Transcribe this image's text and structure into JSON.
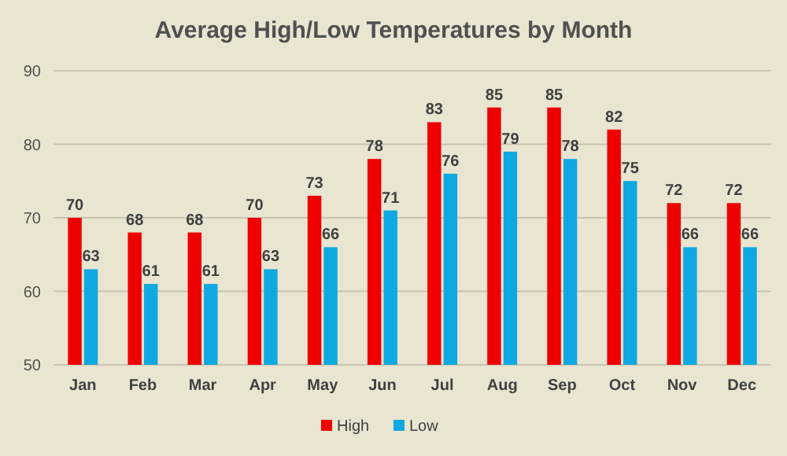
{
  "chart_data": {
    "type": "bar",
    "title": "Average High/Low Temperatures by Month",
    "categories": [
      "Jan",
      "Feb",
      "Mar",
      "Apr",
      "May",
      "Jun",
      "Jul",
      "Aug",
      "Sep",
      "Oct",
      "Nov",
      "Dec"
    ],
    "series": [
      {
        "name": "High",
        "color": "#ee0000",
        "values": [
          70,
          68,
          68,
          70,
          73,
          78,
          83,
          85,
          85,
          82,
          72,
          72
        ]
      },
      {
        "name": "Low",
        "color": "#10a8e0",
        "values": [
          63,
          61,
          61,
          63,
          66,
          71,
          76,
          79,
          78,
          75,
          66,
          66
        ]
      }
    ],
    "ylim": [
      50,
      90
    ],
    "yticks": [
      50,
      60,
      70,
      80,
      90
    ],
    "grid": "y",
    "legend": "bottom",
    "data_labels": true
  }
}
